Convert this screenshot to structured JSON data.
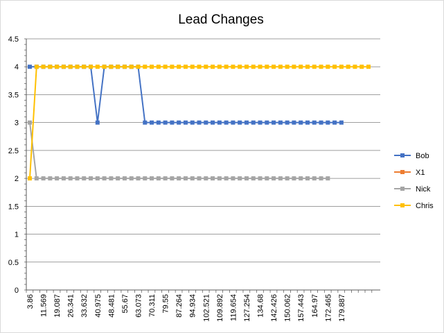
{
  "chart_data": {
    "type": "line",
    "title": "Lead Changes",
    "xlabel": "",
    "ylabel": "",
    "ylim": [
      0,
      4.5
    ],
    "y_ticks": [
      "0",
      "0.5",
      "1",
      "1.5",
      "2",
      "2.5",
      "3",
      "3.5",
      "4",
      "4.5"
    ],
    "grid": true,
    "legend_position": "right",
    "x_tick_labels": [
      "3.86",
      "11.569",
      "19.087",
      "26.341",
      "33.632",
      "40.975",
      "48.481",
      "55.67",
      "63.073",
      "70.311",
      "79.55",
      "87.264",
      "94.934",
      "102.521",
      "109.892",
      "119.654",
      "127.254",
      "134.68",
      "142.426",
      "150.062",
      "157.443",
      "164.97",
      "172.465",
      "179.887"
    ],
    "categories_count": 51,
    "series": [
      {
        "name": "Bob",
        "color": "#4472c4",
        "values": [
          4,
          4,
          4,
          4,
          4,
          4,
          4,
          4,
          4,
          4,
          3,
          4,
          4,
          4,
          4,
          4,
          4,
          3,
          3,
          3,
          3,
          3,
          3,
          3,
          3,
          3,
          3,
          3,
          3,
          3,
          3,
          3,
          3,
          3,
          3,
          3,
          3,
          3,
          3,
          3,
          3,
          3,
          3,
          3,
          3,
          3,
          3,
          null,
          null,
          null,
          null
        ]
      },
      {
        "name": "X1",
        "color": "#ed7d31",
        "values": []
      },
      {
        "name": "Nick",
        "color": "#a5a5a5",
        "values": [
          3,
          2,
          2,
          2,
          2,
          2,
          2,
          2,
          2,
          2,
          2,
          2,
          2,
          2,
          2,
          2,
          2,
          2,
          2,
          2,
          2,
          2,
          2,
          2,
          2,
          2,
          2,
          2,
          2,
          2,
          2,
          2,
          2,
          2,
          2,
          2,
          2,
          2,
          2,
          2,
          2,
          2,
          2,
          2,
          2,
          null,
          null,
          null,
          null,
          null,
          null
        ]
      },
      {
        "name": "Chris",
        "color": "#ffc000",
        "values": [
          2,
          4,
          4,
          4,
          4,
          4,
          4,
          4,
          4,
          4,
          4,
          4,
          4,
          4,
          4,
          4,
          4,
          4,
          4,
          4,
          4,
          4,
          4,
          4,
          4,
          4,
          4,
          4,
          4,
          4,
          4,
          4,
          4,
          4,
          4,
          4,
          4,
          4,
          4,
          4,
          4,
          4,
          4,
          4,
          4,
          4,
          4,
          4,
          4,
          4,
          4
        ]
      }
    ]
  }
}
